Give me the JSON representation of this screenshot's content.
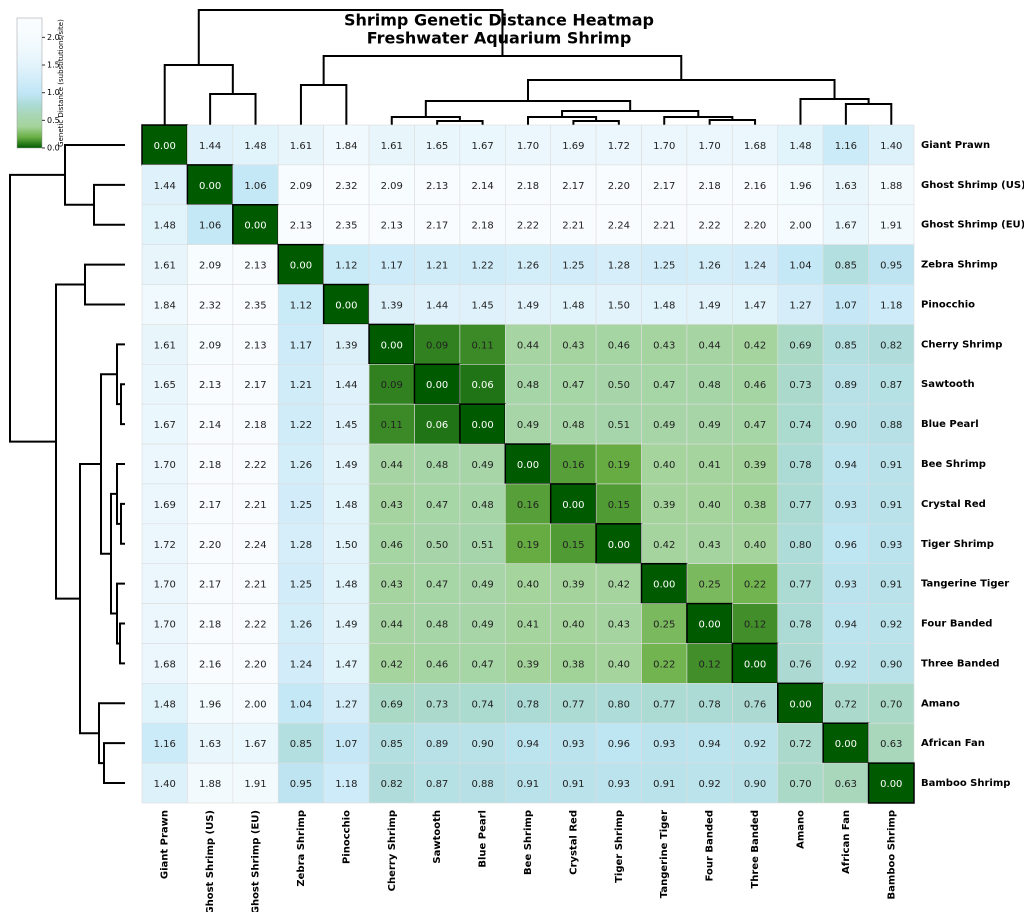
{
  "chart_data": {
    "type": "heatmap",
    "title": "Shrimp Genetic Distance Heatmap",
    "subtitle": "Freshwater Aquarium Shrimp",
    "categories": [
      "Giant Prawn",
      "Ghost Shrimp (US)",
      "Ghost Shrimp (EU)",
      "Zebra Shrimp",
      "Pinocchio",
      "Cherry Shrimp",
      "Sawtooth",
      "Blue Pearl",
      "Bee Shrimp",
      "Crystal Red",
      "Tiger Shrimp",
      "Tangerine Tiger",
      "Four Banded",
      "Three Banded",
      "Amano",
      "African Fan",
      "Bamboo Shrimp"
    ],
    "values": [
      [
        0.0,
        1.44,
        1.48,
        1.61,
        1.84,
        1.61,
        1.65,
        1.67,
        1.7,
        1.69,
        1.72,
        1.7,
        1.7,
        1.68,
        1.48,
        1.16,
        1.4
      ],
      [
        1.44,
        0.0,
        1.06,
        2.09,
        2.32,
        2.09,
        2.13,
        2.14,
        2.18,
        2.17,
        2.2,
        2.17,
        2.18,
        2.16,
        1.96,
        1.63,
        1.88
      ],
      [
        1.48,
        1.06,
        0.0,
        2.13,
        2.35,
        2.13,
        2.17,
        2.18,
        2.22,
        2.21,
        2.24,
        2.21,
        2.22,
        2.2,
        2.0,
        1.67,
        1.91
      ],
      [
        1.61,
        2.09,
        2.13,
        0.0,
        1.12,
        1.17,
        1.21,
        1.22,
        1.26,
        1.25,
        1.28,
        1.25,
        1.26,
        1.24,
        1.04,
        0.85,
        0.95
      ],
      [
        1.84,
        2.32,
        2.35,
        1.12,
        0.0,
        1.39,
        1.44,
        1.45,
        1.49,
        1.48,
        1.5,
        1.48,
        1.49,
        1.47,
        1.27,
        1.07,
        1.18
      ],
      [
        1.61,
        2.09,
        2.13,
        1.17,
        1.39,
        0.0,
        0.09,
        0.11,
        0.44,
        0.43,
        0.46,
        0.43,
        0.44,
        0.42,
        0.69,
        0.85,
        0.82
      ],
      [
        1.65,
        2.13,
        2.17,
        1.21,
        1.44,
        0.09,
        0.0,
        0.06,
        0.48,
        0.47,
        0.5,
        0.47,
        0.48,
        0.46,
        0.73,
        0.89,
        0.87
      ],
      [
        1.67,
        2.14,
        2.18,
        1.22,
        1.45,
        0.11,
        0.06,
        0.0,
        0.49,
        0.48,
        0.51,
        0.49,
        0.49,
        0.47,
        0.74,
        0.9,
        0.88
      ],
      [
        1.7,
        2.18,
        2.22,
        1.26,
        1.49,
        0.44,
        0.48,
        0.49,
        0.0,
        0.16,
        0.19,
        0.4,
        0.41,
        0.39,
        0.78,
        0.94,
        0.91
      ],
      [
        1.69,
        2.17,
        2.21,
        1.25,
        1.48,
        0.43,
        0.47,
        0.48,
        0.16,
        0.0,
        0.15,
        0.39,
        0.4,
        0.38,
        0.77,
        0.93,
        0.91
      ],
      [
        1.72,
        2.2,
        2.24,
        1.28,
        1.5,
        0.46,
        0.5,
        0.51,
        0.19,
        0.15,
        0.0,
        0.42,
        0.43,
        0.4,
        0.8,
        0.96,
        0.93
      ],
      [
        1.7,
        2.17,
        2.21,
        1.25,
        1.48,
        0.43,
        0.47,
        0.49,
        0.4,
        0.39,
        0.42,
        0.0,
        0.25,
        0.22,
        0.77,
        0.93,
        0.91
      ],
      [
        1.7,
        2.18,
        2.22,
        1.26,
        1.49,
        0.44,
        0.48,
        0.49,
        0.41,
        0.4,
        0.43,
        0.25,
        0.0,
        0.12,
        0.78,
        0.94,
        0.92
      ],
      [
        1.68,
        2.16,
        2.2,
        1.24,
        1.47,
        0.42,
        0.46,
        0.47,
        0.39,
        0.38,
        0.4,
        0.22,
        0.12,
        0.0,
        0.76,
        0.92,
        0.9
      ],
      [
        1.48,
        1.96,
        2.0,
        1.04,
        1.27,
        0.69,
        0.73,
        0.74,
        0.78,
        0.77,
        0.8,
        0.77,
        0.78,
        0.76,
        0.0,
        0.72,
        0.7
      ],
      [
        1.16,
        1.63,
        1.67,
        0.85,
        1.07,
        0.85,
        0.89,
        0.9,
        0.94,
        0.93,
        0.96,
        0.93,
        0.94,
        0.92,
        0.72,
        0.0,
        0.63
      ],
      [
        1.4,
        1.88,
        1.91,
        0.95,
        1.18,
        0.82,
        0.87,
        0.88,
        0.91,
        0.91,
        0.93,
        0.91,
        0.92,
        0.9,
        0.7,
        0.63,
        0.0
      ]
    ],
    "value_labels": [
      [
        "0.00",
        "1.44",
        "1.48",
        "1.61",
        "1.84",
        "1.61",
        "1.65",
        "1.67",
        "1.70",
        "1.69",
        "1.72",
        "1.70",
        "1.70",
        "1.68",
        "1.48",
        "1.16",
        "1.40"
      ],
      [
        "1.44",
        "0.00",
        "1.06",
        "2.09",
        "2.32",
        "2.09",
        "2.13",
        "2.14",
        "2.18",
        "2.17",
        "2.20",
        "2.17",
        "2.18",
        "2.16",
        "1.96",
        "1.63",
        "1.88"
      ],
      [
        "1.48",
        "1.06",
        "0.00",
        "2.13",
        "2.35",
        "2.13",
        "2.17",
        "2.18",
        "2.22",
        "2.21",
        "2.24",
        "2.21",
        "2.22",
        "2.20",
        "2.00",
        "1.67",
        "1.91"
      ],
      [
        "1.61",
        "2.09",
        "2.13",
        "0.00",
        "1.12",
        "1.17",
        "1.21",
        "1.22",
        "1.26",
        "1.25",
        "1.28",
        "1.25",
        "1.26",
        "1.24",
        "1.04",
        "0.85",
        "0.95"
      ],
      [
        "1.84",
        "2.32",
        "2.35",
        "1.12",
        "0.00",
        "1.39",
        "1.44",
        "1.45",
        "1.49",
        "1.48",
        "1.50",
        "1.48",
        "1.49",
        "1.47",
        "1.27",
        "1.07",
        "1.18"
      ],
      [
        "1.61",
        "2.09",
        "2.13",
        "1.17",
        "1.39",
        "0.00",
        "0.09",
        "0.11",
        "0.44",
        "0.43",
        "0.46",
        "0.43",
        "0.44",
        "0.42",
        "0.69",
        "0.85",
        "0.82"
      ],
      [
        "1.65",
        "2.13",
        "2.17",
        "1.21",
        "1.44",
        "0.09",
        "0.00",
        "0.06",
        "0.48",
        "0.47",
        "0.50",
        "0.47",
        "0.48",
        "0.46",
        "0.73",
        "0.89",
        "0.87"
      ],
      [
        "1.67",
        "2.14",
        "2.18",
        "1.22",
        "1.45",
        "0.11",
        "0.06",
        "0.00",
        "0.49",
        "0.48",
        "0.51",
        "0.49",
        "0.49",
        "0.47",
        "0.74",
        "0.90",
        "0.88"
      ],
      [
        "1.70",
        "2.18",
        "2.22",
        "1.26",
        "1.49",
        "0.44",
        "0.48",
        "0.49",
        "0.00",
        "0.16",
        "0.19",
        "0.40",
        "0.41",
        "0.39",
        "0.78",
        "0.94",
        "0.91"
      ],
      [
        "1.69",
        "2.17",
        "2.21",
        "1.25",
        "1.48",
        "0.43",
        "0.47",
        "0.48",
        "0.16",
        "0.00",
        "0.15",
        "0.39",
        "0.40",
        "0.38",
        "0.77",
        "0.93",
        "0.91"
      ],
      [
        "1.72",
        "2.20",
        "2.24",
        "1.28",
        "1.50",
        "0.46",
        "0.50",
        "0.51",
        "0.19",
        "0.15",
        "0.00",
        "0.42",
        "0.43",
        "0.40",
        "0.80",
        "0.96",
        "0.93"
      ],
      [
        "1.70",
        "2.17",
        "2.21",
        "1.25",
        "1.48",
        "0.43",
        "0.47",
        "0.49",
        "0.40",
        "0.39",
        "0.42",
        "0.00",
        "0.25",
        "0.22",
        "0.77",
        "0.93",
        "0.91"
      ],
      [
        "1.70",
        "2.18",
        "2.22",
        "1.26",
        "1.49",
        "0.44",
        "0.48",
        "0.49",
        "0.41",
        "0.40",
        "0.43",
        "0.25",
        "0.00",
        "0.12",
        "0.78",
        "0.94",
        "0.92"
      ],
      [
        "1.68",
        "2.16",
        "2.20",
        "1.24",
        "1.47",
        "0.42",
        "0.46",
        "0.47",
        "0.39",
        "0.38",
        "0.40",
        "0.22",
        "0.12",
        "0.00",
        "0.76",
        "0.92",
        "0.90"
      ],
      [
        "1.48",
        "1.96",
        "2.00",
        "1.04",
        "1.27",
        "0.69",
        "0.73",
        "0.74",
        "0.78",
        "0.77",
        "0.80",
        "0.77",
        "0.78",
        "0.76",
        "0.00",
        "0.72",
        "0.70"
      ],
      [
        "1.16",
        "1.63",
        "1.67",
        "0.85",
        "1.07",
        "0.85",
        "0.89",
        "0.90",
        "0.94",
        "0.93",
        "0.96",
        "0.93",
        "0.94",
        "0.92",
        "0.72",
        "0.00",
        "0.63"
      ],
      [
        "1.40",
        "1.88",
        "1.91",
        "0.95",
        "1.18",
        "0.82",
        "0.87",
        "0.88",
        "0.91",
        "0.91",
        "0.93",
        "0.91",
        "0.92",
        "0.90",
        "0.70",
        "0.63",
        "0.00"
      ]
    ],
    "colorbar": {
      "label": "Genetic Distance (substitutions/site)",
      "vlim": [
        0,
        2.35
      ],
      "ticks": [
        {
          "value": 0,
          "label": "0.0"
        },
        0.5,
        {
          "value": 1,
          "label": "1.0"
        },
        1.5,
        {
          "value": 2,
          "label": "2.0"
        }
      ],
      "colors": [
        "#005a00",
        "#6aaf45",
        "#a5d49c",
        "#a8d6b4",
        "#acdbd6",
        "#c0e6f5",
        "#cdebf8",
        "#dbf0fa",
        "#e6f5fc",
        "#eef8fd",
        "#f4fbfe",
        "#f8fcff",
        "#fafdff"
      ]
    }
  }
}
